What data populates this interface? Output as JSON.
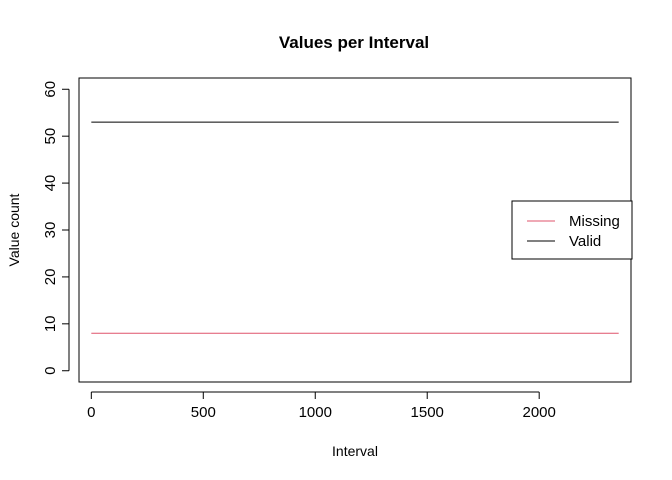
{
  "chart_data": {
    "type": "line",
    "title": "Values per Interval",
    "xlabel": "Interval",
    "ylabel": "Value count",
    "xlim": [
      -55,
      2410
    ],
    "ylim": [
      -2.4,
      62.4
    ],
    "xticks": [
      0,
      500,
      1000,
      1500,
      2000
    ],
    "yticks": [
      0,
      10,
      20,
      30,
      40,
      50,
      60
    ],
    "grid": false,
    "legend_position": "right",
    "series": [
      {
        "name": "Missing",
        "color": "#DF536B",
        "x": [
          0,
          2355
        ],
        "y": [
          8,
          8
        ]
      },
      {
        "name": "Valid",
        "color": "#000000",
        "x": [
          0,
          2355
        ],
        "y": [
          53,
          53
        ]
      }
    ]
  }
}
